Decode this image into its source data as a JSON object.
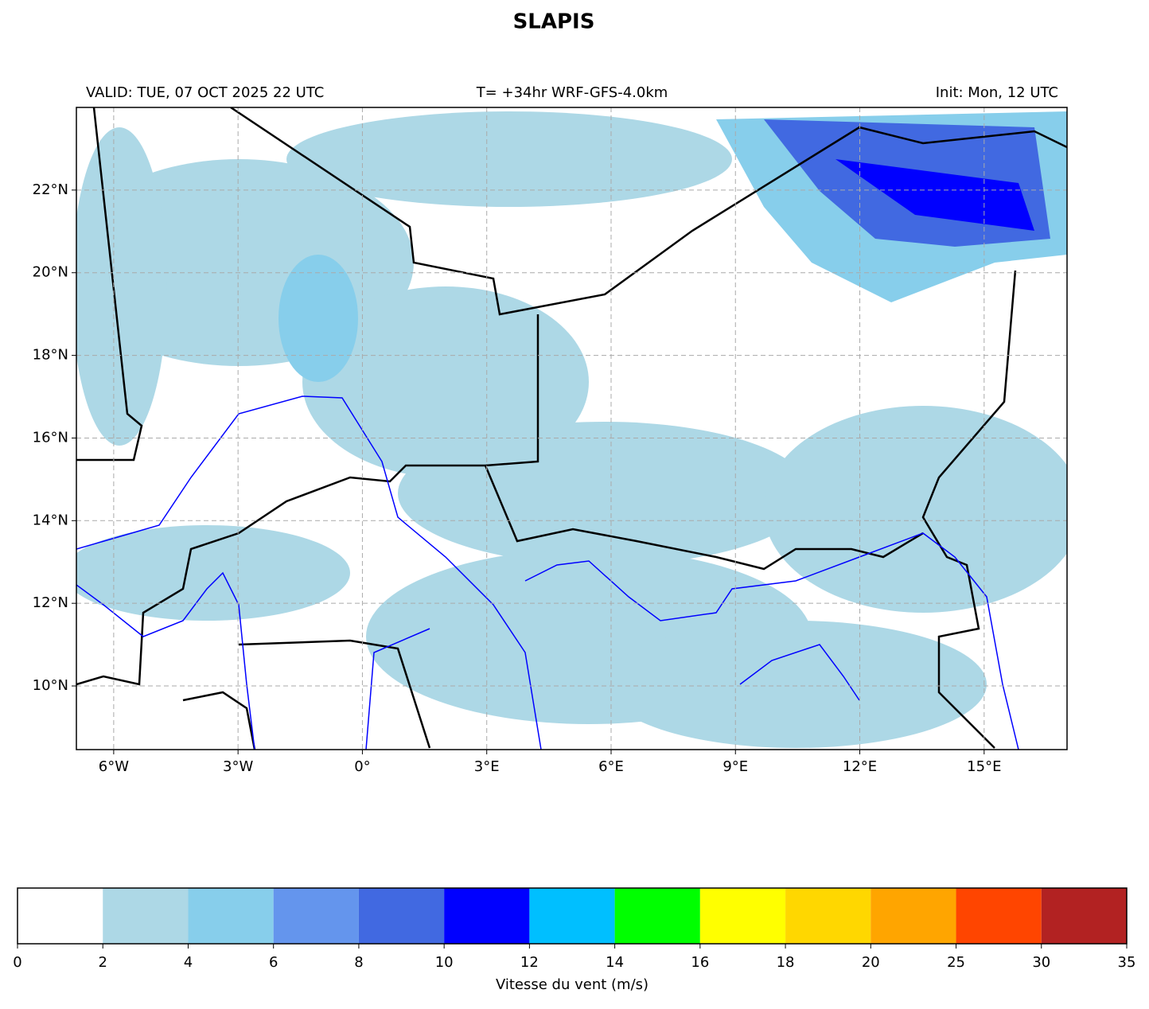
{
  "title": "SLAPIS",
  "valid": "VALID: TUE, 07 OCT 2025 22 UTC",
  "model": "T= +34hr WRF-GFS-4.0km",
  "init": "Init: Mon, 12 UTC",
  "map": {
    "xlim": [
      -6.9,
      17
    ],
    "ylim": [
      8.46,
      24
    ],
    "xticks": [
      {
        "value": -6,
        "label": "6°W"
      },
      {
        "value": -3,
        "label": "3°W"
      },
      {
        "value": 0,
        "label": "0°"
      },
      {
        "value": 3,
        "label": "3°E"
      },
      {
        "value": 6,
        "label": "6°E"
      },
      {
        "value": 9,
        "label": "9°E"
      },
      {
        "value": 12,
        "label": "12°E"
      },
      {
        "value": 15,
        "label": "15°E"
      }
    ],
    "yticks": [
      {
        "value": 10,
        "label": "10°N"
      },
      {
        "value": 12,
        "label": "12°N"
      },
      {
        "value": 14,
        "label": "14°N"
      },
      {
        "value": 16,
        "label": "16°N"
      },
      {
        "value": 18,
        "label": "18°N"
      },
      {
        "value": 20,
        "label": "20°N"
      },
      {
        "value": 22,
        "label": "22°N"
      }
    ],
    "grid": true
  },
  "colorbar": {
    "bounds": [
      0,
      2,
      4,
      6,
      8,
      10,
      12,
      14,
      16,
      18,
      20,
      25,
      30,
      35
    ],
    "colors": [
      "#ffffff",
      "#add8e6",
      "#87ceeb",
      "#6495ed",
      "#4169e1",
      "#0000ff",
      "#00bfff",
      "#00ff00",
      "#ffff00",
      "#ffd700",
      "#ffa500",
      "#ff4500",
      "#b22222"
    ],
    "label": "Vitesse du vent (m/s)"
  }
}
